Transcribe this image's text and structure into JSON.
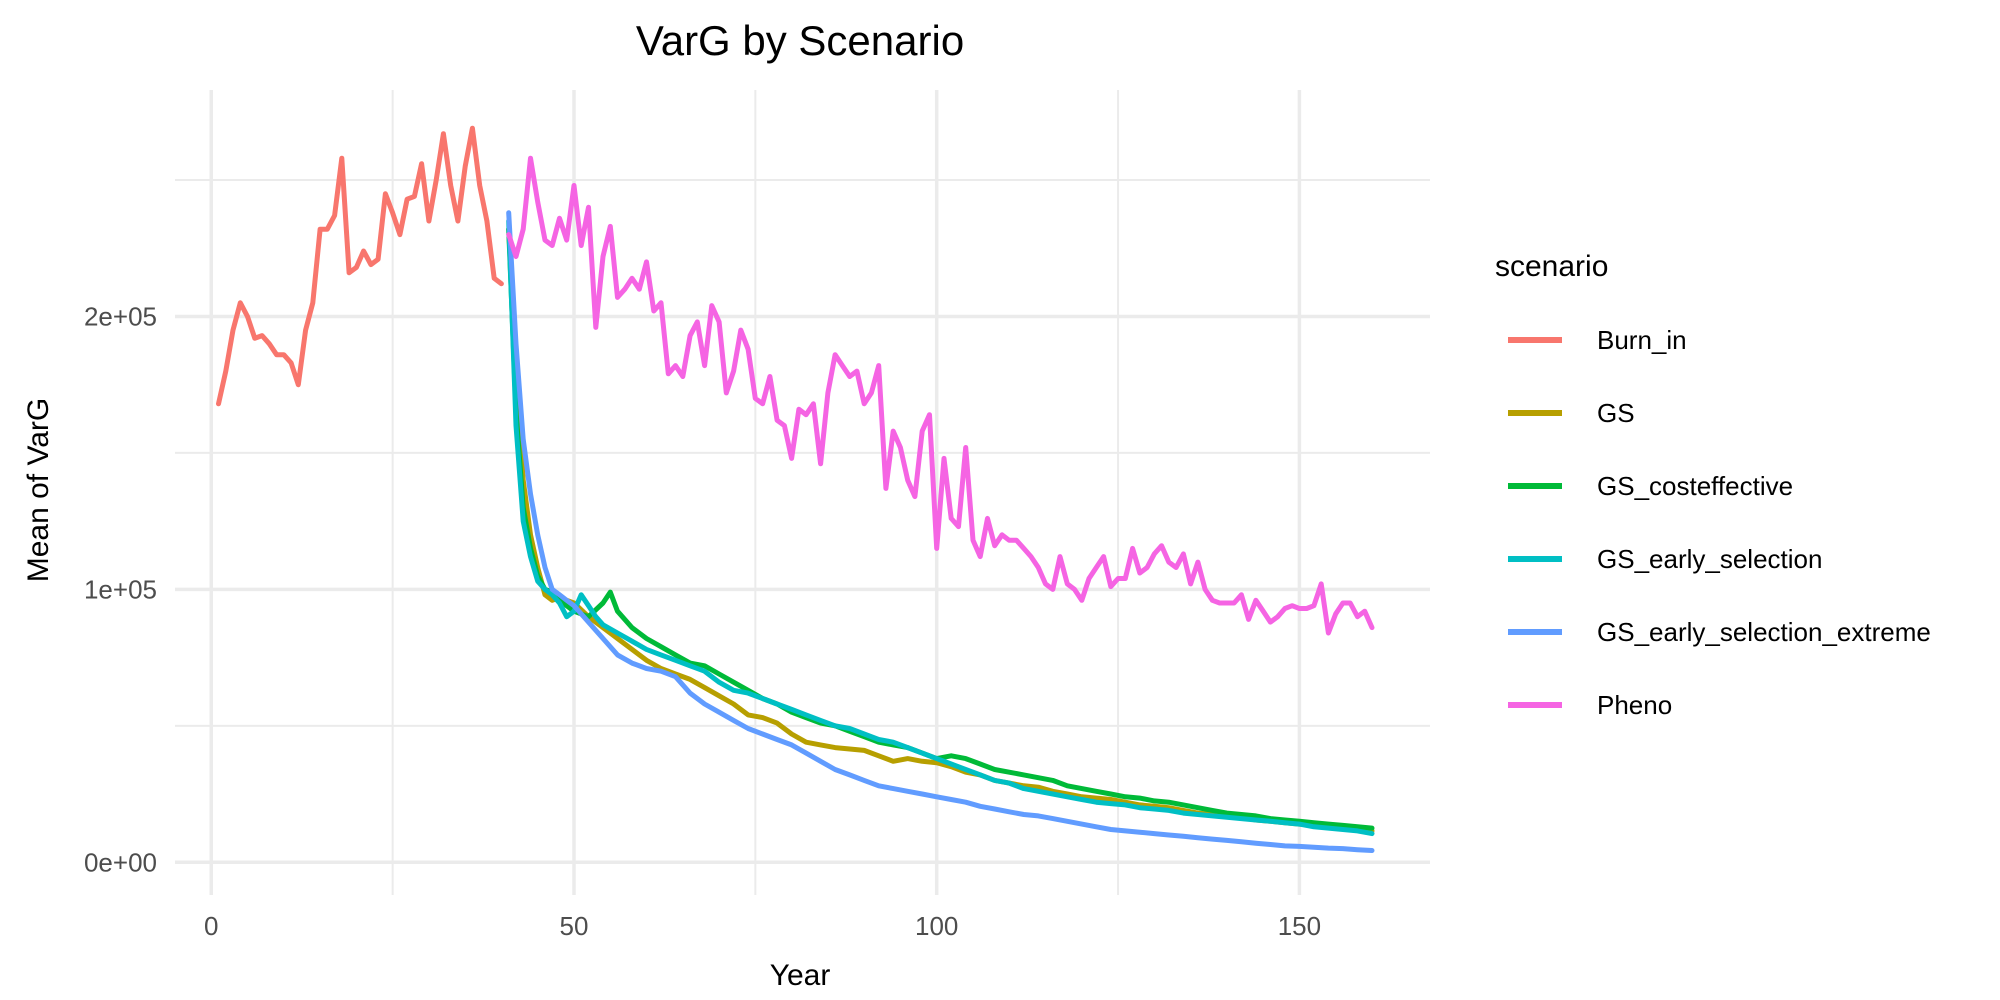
{
  "chart_data": {
    "type": "line",
    "title": "VarG by Scenario",
    "xlabel": "Year",
    "ylabel": "Mean of VarG",
    "xlim": [
      -5,
      168
    ],
    "ylim": [
      -12000,
      283000
    ],
    "xticks": [
      0,
      50,
      100,
      150
    ],
    "xtick_labels": [
      "0",
      "50",
      "100",
      "150"
    ],
    "yticks": [
      0,
      100000,
      200000
    ],
    "ytick_labels": [
      "0e+00",
      "1e+05",
      "2e+05"
    ],
    "grid": true,
    "legend_title": "scenario",
    "legend_position": "right",
    "series": [
      {
        "name": "Burn_in",
        "color": "#F8766D",
        "x": [
          1,
          2,
          3,
          4,
          5,
          6,
          7,
          8,
          9,
          10,
          11,
          12,
          13,
          14,
          15,
          16,
          17,
          18,
          19,
          20,
          21,
          22,
          23,
          24,
          25,
          26,
          27,
          28,
          29,
          30,
          31,
          32,
          33,
          34,
          35,
          36,
          37,
          38,
          39,
          40
        ],
        "y": [
          168000,
          180000,
          195000,
          205000,
          200000,
          192000,
          193000,
          190000,
          186000,
          186000,
          183000,
          175000,
          195000,
          205000,
          232000,
          232000,
          237000,
          258000,
          216000,
          218000,
          224000,
          219000,
          221000,
          245000,
          238000,
          230000,
          243000,
          244000,
          256000,
          235000,
          250000,
          267000,
          248000,
          235000,
          255000,
          269000,
          248000,
          235000,
          214000,
          212000
        ]
      },
      {
        "name": "GS",
        "color": "#B79F00",
        "x": [
          41,
          42,
          43,
          44,
          45,
          46,
          47,
          48,
          49,
          50,
          52,
          54,
          56,
          58,
          60,
          62,
          64,
          66,
          68,
          70,
          72,
          74,
          76,
          78,
          80,
          82,
          84,
          86,
          88,
          90,
          92,
          94,
          96,
          98,
          100,
          102,
          104,
          106,
          108,
          110,
          112,
          114,
          116,
          118,
          120,
          122,
          124,
          126,
          128,
          130,
          132,
          134,
          136,
          138,
          140,
          142,
          144,
          146,
          148,
          150,
          152,
          154,
          156,
          158,
          160
        ],
        "y": [
          232000,
          180000,
          140000,
          120000,
          108000,
          98000,
          96000,
          97000,
          96000,
          95000,
          90000,
          86000,
          82000,
          78000,
          74000,
          71000,
          69000,
          67000,
          64000,
          61000,
          58000,
          54000,
          53000,
          51000,
          47000,
          44000,
          43000,
          42000,
          41500,
          41000,
          39000,
          37000,
          38000,
          37000,
          36500,
          35000,
          33000,
          32000,
          30000,
          29000,
          28000,
          27500,
          26000,
          25000,
          24000,
          23500,
          23000,
          22000,
          21000,
          20500,
          20000,
          19000,
          18000,
          17500,
          17000,
          16500,
          15500,
          15000,
          14500,
          14000,
          13500,
          13000,
          12500,
          12000,
          11500
        ]
      },
      {
        "name": "GS_costeffective",
        "color": "#00BA38",
        "x": [
          41,
          42,
          43,
          44,
          45,
          46,
          47,
          48,
          49,
          50,
          52,
          54,
          55,
          56,
          58,
          60,
          62,
          64,
          66,
          68,
          70,
          72,
          74,
          76,
          78,
          80,
          82,
          84,
          86,
          88,
          90,
          92,
          94,
          96,
          98,
          100,
          102,
          104,
          106,
          108,
          110,
          112,
          114,
          116,
          118,
          120,
          122,
          124,
          126,
          128,
          130,
          132,
          134,
          136,
          138,
          140,
          142,
          144,
          146,
          148,
          150,
          152,
          154,
          156,
          158,
          160
        ],
        "y": [
          232000,
          165000,
          130000,
          115000,
          105000,
          100000,
          99000,
          96000,
          94000,
          92000,
          90000,
          95000,
          99000,
          92000,
          86000,
          82000,
          79000,
          76000,
          73000,
          72000,
          69000,
          66000,
          63000,
          60000,
          58000,
          55000,
          53000,
          51000,
          50000,
          48000,
          46000,
          44000,
          43000,
          42000,
          40000,
          38000,
          39000,
          38000,
          36000,
          34000,
          33000,
          32000,
          31000,
          30000,
          28000,
          27000,
          26000,
          25000,
          24000,
          23500,
          22500,
          22000,
          21000,
          20000,
          19000,
          18000,
          17500,
          17000,
          16000,
          15500,
          15000,
          14500,
          14000,
          13500,
          13000,
          12500
        ]
      },
      {
        "name": "GS_early_selection",
        "color": "#00BFC4",
        "x": [
          41,
          42,
          43,
          44,
          45,
          46,
          47,
          48,
          49,
          50,
          51,
          52,
          53,
          54,
          56,
          58,
          60,
          62,
          64,
          66,
          68,
          70,
          72,
          74,
          76,
          78,
          80,
          82,
          84,
          86,
          88,
          90,
          92,
          94,
          96,
          98,
          100,
          102,
          104,
          106,
          108,
          110,
          112,
          114,
          116,
          118,
          120,
          122,
          124,
          126,
          128,
          130,
          132,
          134,
          136,
          138,
          140,
          142,
          144,
          146,
          148,
          150,
          152,
          154,
          156,
          158,
          160
        ],
        "y": [
          235000,
          160000,
          125000,
          112000,
          103000,
          100000,
          98000,
          95000,
          90000,
          92000,
          98000,
          94000,
          90000,
          87000,
          84000,
          81000,
          78000,
          76000,
          74000,
          72000,
          70000,
          66000,
          63000,
          62000,
          60000,
          58000,
          56000,
          54000,
          52000,
          50000,
          49000,
          47000,
          45000,
          44000,
          42000,
          40000,
          38000,
          36000,
          34000,
          32000,
          30000,
          29000,
          27000,
          26000,
          25000,
          24000,
          23000,
          22000,
          21500,
          21000,
          20000,
          19500,
          19000,
          18000,
          17500,
          17000,
          16500,
          16000,
          15500,
          15000,
          14500,
          14000,
          13000,
          12500,
          12000,
          11500,
          10500
        ]
      },
      {
        "name": "GS_early_selection_extreme",
        "color": "#619CFF",
        "x": [
          41,
          42,
          43,
          44,
          45,
          46,
          47,
          48,
          49,
          50,
          52,
          54,
          56,
          58,
          60,
          62,
          64,
          66,
          68,
          70,
          72,
          74,
          76,
          78,
          80,
          82,
          84,
          86,
          88,
          90,
          92,
          94,
          96,
          98,
          100,
          102,
          104,
          106,
          108,
          110,
          112,
          114,
          116,
          118,
          120,
          122,
          124,
          126,
          128,
          130,
          132,
          134,
          136,
          138,
          140,
          142,
          144,
          146,
          148,
          150,
          152,
          154,
          156,
          158,
          160
        ],
        "y": [
          238000,
          190000,
          155000,
          135000,
          120000,
          108000,
          100000,
          98000,
          96000,
          94000,
          88000,
          82000,
          76000,
          73000,
          71000,
          70000,
          68000,
          62000,
          58000,
          55000,
          52000,
          49000,
          47000,
          45000,
          43000,
          40000,
          37000,
          34000,
          32000,
          30000,
          28000,
          27000,
          26000,
          25000,
          24000,
          23000,
          22000,
          20500,
          19500,
          18500,
          17500,
          17000,
          16000,
          15000,
          14000,
          13000,
          12000,
          11500,
          11000,
          10500,
          10000,
          9500,
          9000,
          8500,
          8000,
          7500,
          7000,
          6500,
          6000,
          5800,
          5500,
          5200,
          5000,
          4600,
          4300
        ]
      },
      {
        "name": "Pheno",
        "color": "#F564E3",
        "x": [
          41,
          42,
          43,
          44,
          45,
          46,
          47,
          48,
          49,
          50,
          51,
          52,
          53,
          54,
          55,
          56,
          57,
          58,
          59,
          60,
          61,
          62,
          63,
          64,
          65,
          66,
          67,
          68,
          69,
          70,
          71,
          72,
          73,
          74,
          75,
          76,
          77,
          78,
          79,
          80,
          81,
          82,
          83,
          84,
          85,
          86,
          87,
          88,
          89,
          90,
          91,
          92,
          93,
          94,
          95,
          96,
          97,
          98,
          99,
          100,
          101,
          102,
          103,
          104,
          105,
          106,
          107,
          108,
          109,
          110,
          111,
          112,
          113,
          114,
          115,
          116,
          117,
          118,
          119,
          120,
          121,
          122,
          123,
          124,
          125,
          126,
          127,
          128,
          129,
          130,
          131,
          132,
          133,
          134,
          135,
          136,
          137,
          138,
          139,
          140,
          141,
          142,
          143,
          144,
          145,
          146,
          147,
          148,
          149,
          150,
          151,
          152,
          153,
          154,
          155,
          156,
          157,
          158,
          159,
          160
        ],
        "y": [
          230000,
          222000,
          232000,
          258000,
          242000,
          228000,
          226000,
          236000,
          228000,
          248000,
          226000,
          240000,
          196000,
          222000,
          233000,
          207000,
          210000,
          214000,
          210000,
          220000,
          202000,
          205000,
          179000,
          182000,
          178000,
          193000,
          198000,
          182000,
          204000,
          198000,
          172000,
          180000,
          195000,
          188000,
          170000,
          168000,
          178000,
          162000,
          160000,
          148000,
          166000,
          164000,
          168000,
          146000,
          172000,
          186000,
          182000,
          178000,
          180000,
          168000,
          172000,
          182000,
          137000,
          158000,
          152000,
          140000,
          134000,
          158000,
          164000,
          115000,
          148000,
          126000,
          123000,
          152000,
          118000,
          112000,
          126000,
          116000,
          120000,
          118000,
          118000,
          115000,
          112000,
          108000,
          102000,
          100000,
          112000,
          102000,
          100000,
          96000,
          104000,
          108000,
          112000,
          101000,
          104000,
          104000,
          115000,
          106000,
          108000,
          113000,
          116000,
          110000,
          108000,
          113000,
          102000,
          110000,
          100000,
          96000,
          95000,
          95000,
          95000,
          98000,
          89000,
          96000,
          92000,
          88000,
          90000,
          93000,
          94000,
          93000,
          93000,
          94000,
          102000,
          84000,
          91000,
          95000,
          95000,
          90000,
          92000,
          86000
        ]
      }
    ]
  }
}
